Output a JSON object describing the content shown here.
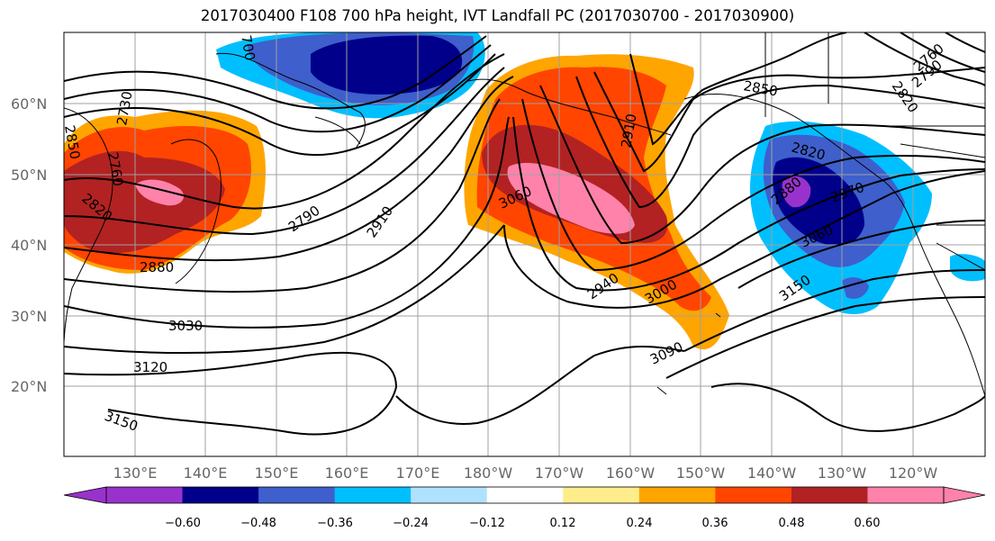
{
  "title": "2017030400 F108 700 hPa height, IVT Landfall PC (2017030700 - 2017030900)",
  "map": {
    "lat_labels": [
      "60°N",
      "50°N",
      "40°N",
      "30°N",
      "20°N"
    ],
    "lon_labels": [
      "130°E",
      "140°E",
      "150°E",
      "160°E",
      "170°E",
      "180°W",
      "170°W",
      "160°W",
      "150°W",
      "140°W",
      "130°W",
      "120°W"
    ],
    "contour_labels": [
      "2730",
      "2760",
      "2850",
      "2820",
      "2880",
      "2790",
      "2910",
      "3030",
      "3120",
      "3150",
      "3060",
      "2940",
      "3000",
      "3090",
      "2910",
      "2850",
      "2760",
      "2790",
      "2820",
      "2820",
      "2880",
      "2970",
      "3060",
      "3150",
      "700"
    ],
    "shading_colors": {
      "purple": "#9932cc",
      "navy": "#00008b",
      "blue": "#3e5fcc",
      "cyan": "#00bfff",
      "lightblue": "#b0e2ff",
      "white": "#ffffff",
      "yellow": "#ffec8b",
      "orange": "#ffa500",
      "redorange": "#ff4500",
      "darkred": "#b22222",
      "pink": "#ff82ab"
    }
  },
  "colorbar": {
    "colors": [
      "#9932cc",
      "#00008b",
      "#3e5fcc",
      "#00bfff",
      "#b0e2ff",
      "#ffffff",
      "#ffec8b",
      "#ffa500",
      "#ff4500",
      "#b22222",
      "#ff82ab"
    ],
    "tick_labels": [
      "−0.60",
      "−0.48",
      "−0.36",
      "−0.24",
      "−0.12",
      "0.12",
      "0.24",
      "0.36",
      "0.48",
      "0.60"
    ]
  }
}
